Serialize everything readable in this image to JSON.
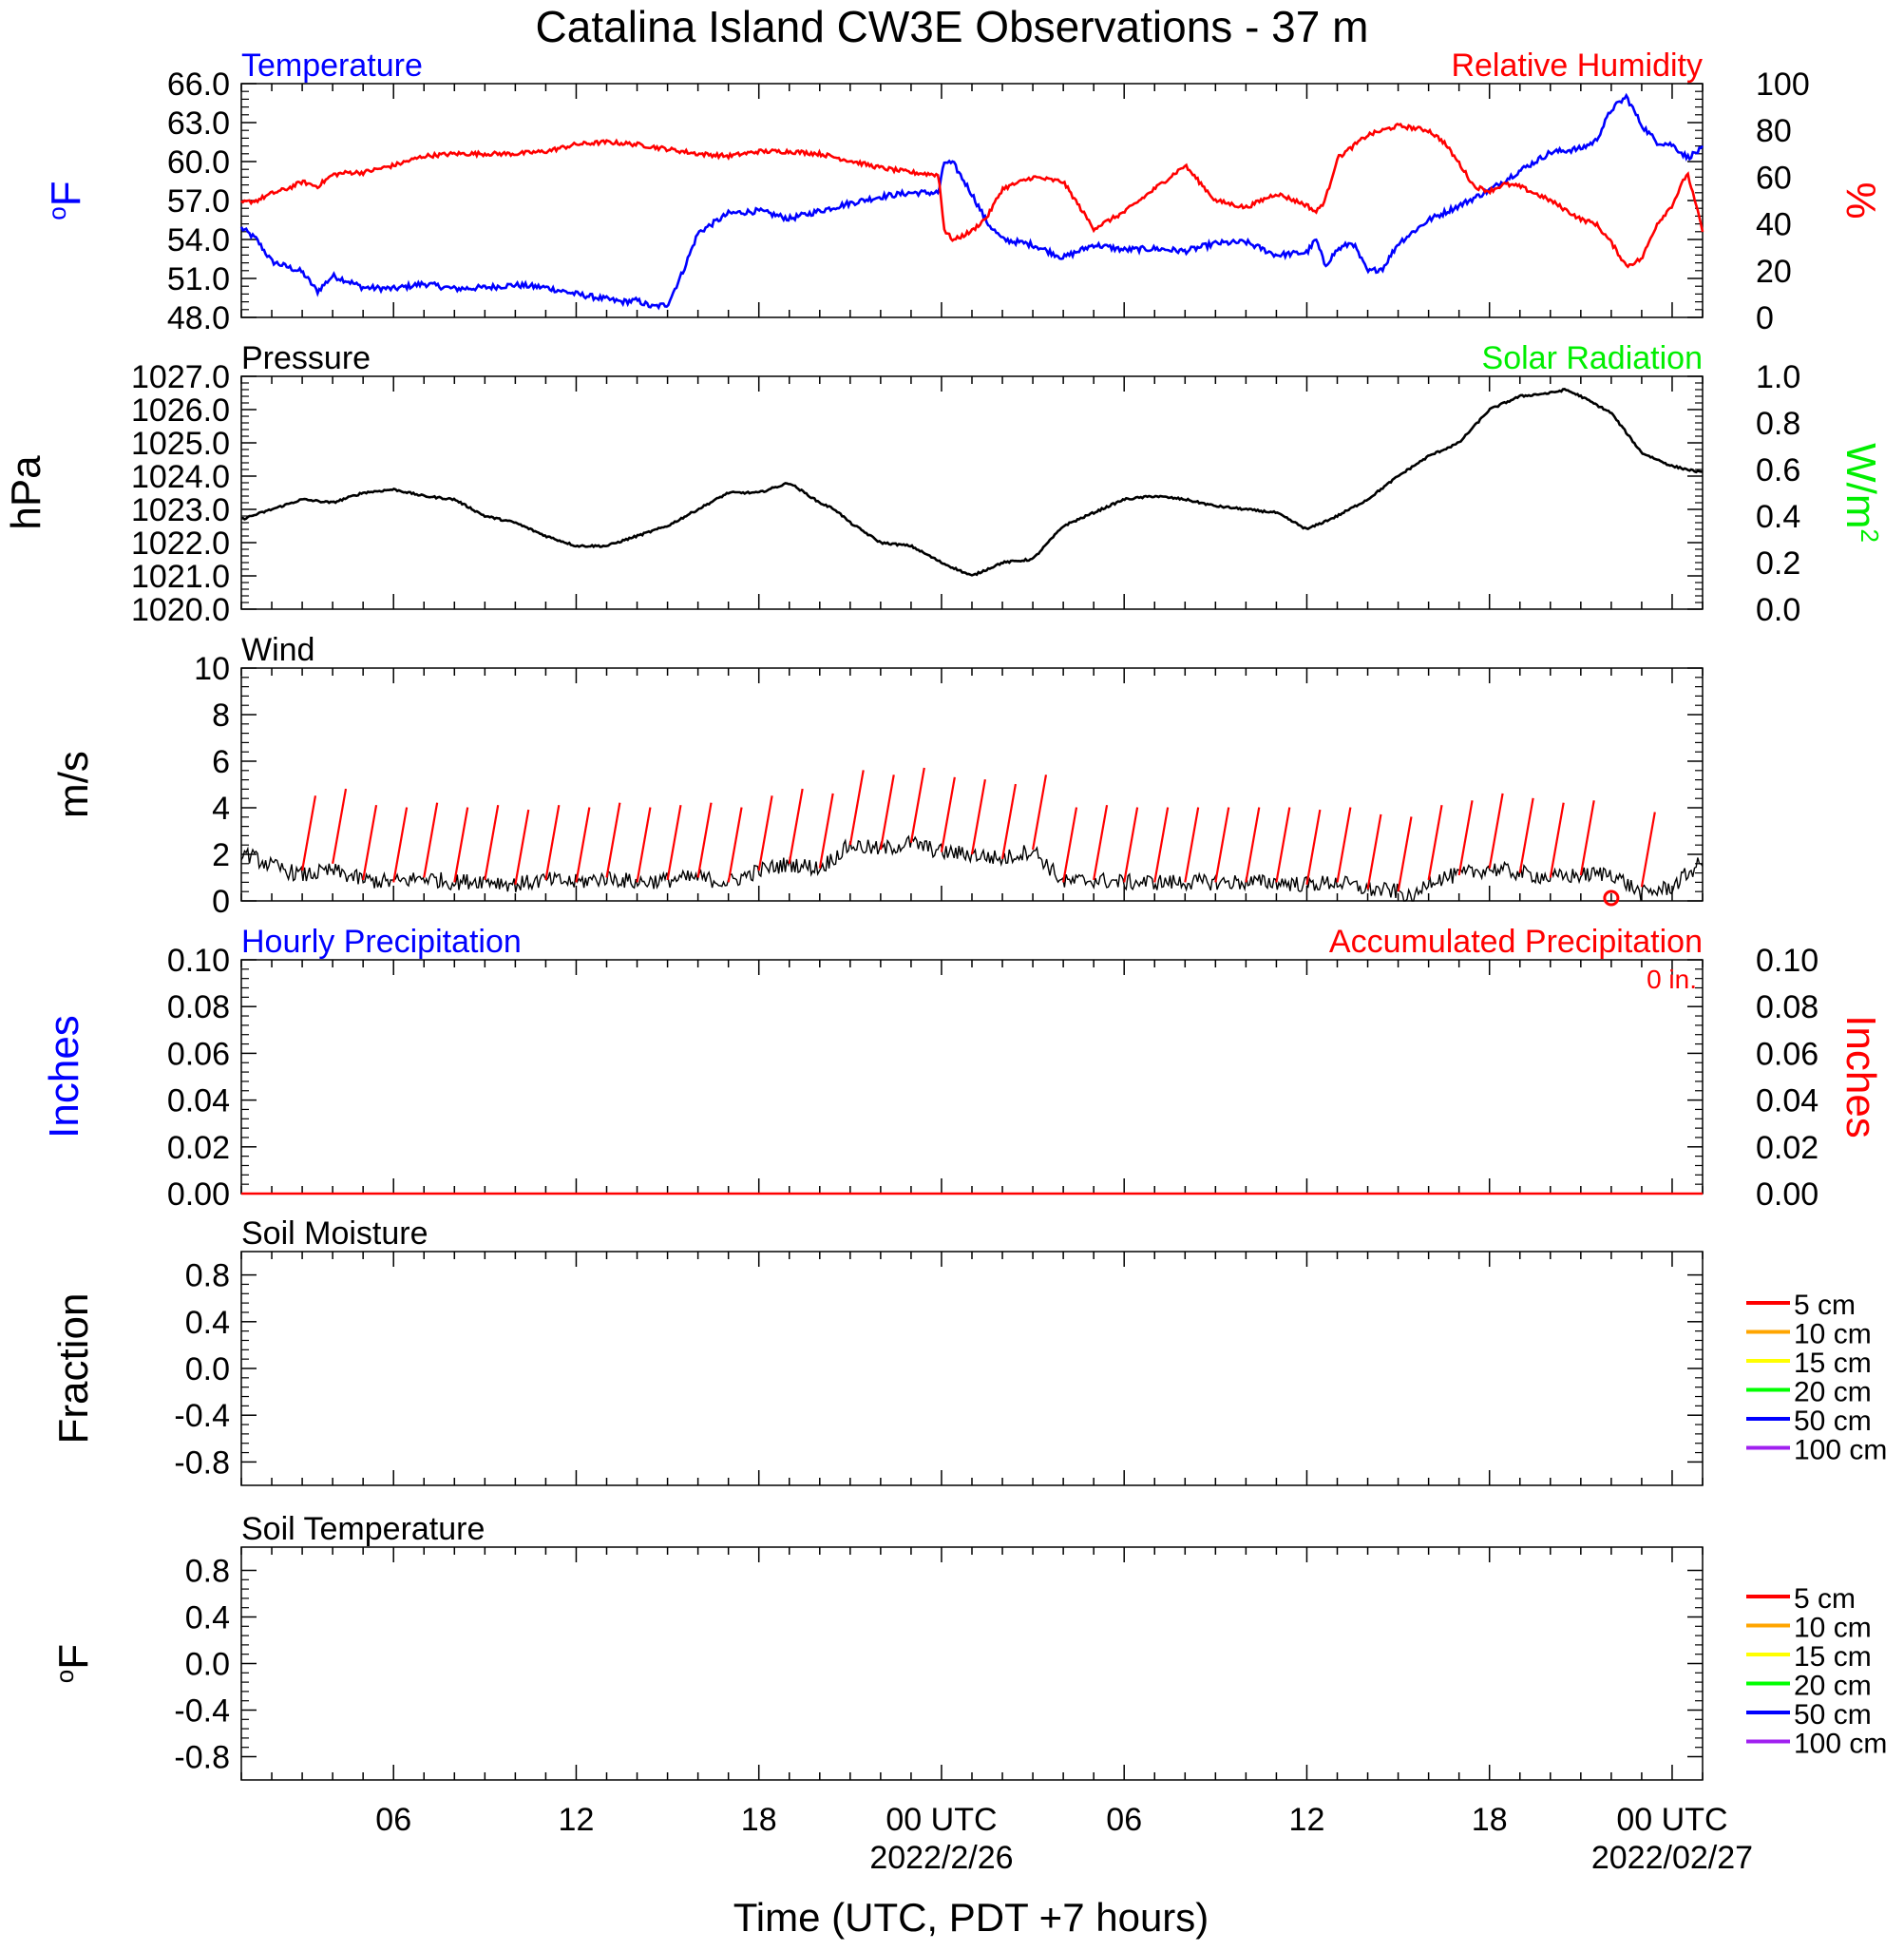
{
  "title": "Catalina Island CW3E Observations - 37 m",
  "x_axis": {
    "label": "Time (UTC, PDT +7 hours)",
    "tick_labels": [
      {
        "hour": 6,
        "lines": [
          "06"
        ]
      },
      {
        "hour": 12,
        "lines": [
          "12"
        ]
      },
      {
        "hour": 18,
        "lines": [
          "18"
        ]
      },
      {
        "hour": 24,
        "lines": [
          "00 UTC",
          "2022/2/26"
        ]
      },
      {
        "hour": 30,
        "lines": [
          "06"
        ]
      },
      {
        "hour": 36,
        "lines": [
          "12"
        ]
      },
      {
        "hour": 42,
        "lines": [
          "18"
        ]
      },
      {
        "hour": 48,
        "lines": [
          "00 UTC",
          "2022/02/27"
        ]
      }
    ],
    "range_hours": [
      1,
      49
    ]
  },
  "colors": {
    "temperature": "#0000ff",
    "humidity": "#ff0000",
    "solar": "#00ee00",
    "black": "#000000",
    "barb": "#ff0000",
    "accum_precip": "#ff0000",
    "hourly_precip": "#0000ff",
    "depth_5cm": "#ff0000",
    "depth_10cm": "#ffa500",
    "depth_15cm": "#ffff00",
    "depth_20cm": "#00ff00",
    "depth_50cm": "#0000ff",
    "depth_100cm": "#a020f0"
  },
  "chart_data": [
    {
      "type": "line",
      "panel": "temperature_humidity",
      "left_title": "Temperature",
      "right_title": "Relative Humidity",
      "left_unit": "oF",
      "right_unit": "%",
      "left_ylim": [
        48.0,
        66.0
      ],
      "left_ticks": [
        "66.0",
        "63.0",
        "60.0",
        "57.0",
        "54.0",
        "51.0",
        "48.0"
      ],
      "right_ylim": [
        0,
        100
      ],
      "right_ticks": [
        "100",
        "80",
        "60",
        "40",
        "20",
        "0"
      ],
      "series": [
        {
          "name": "Temperature",
          "axis": "left",
          "x": [
            1.0,
            1.5,
            2.0,
            2.5,
            3.0,
            3.5,
            4.0,
            4.5,
            5.0,
            6.0,
            7.0,
            8.0,
            9.0,
            10.0,
            11.0,
            12.0,
            13.0,
            13.5,
            14.0,
            14.5,
            15.0,
            15.5,
            16.0,
            17.0,
            18.0,
            19.0,
            20.0,
            21.0,
            22.0,
            23.0,
            23.9,
            24.1,
            24.4,
            25.0,
            25.5,
            26.0,
            27.0,
            28.0,
            29.0,
            30.0,
            31.0,
            32.0,
            33.0,
            34.0,
            35.0,
            36.0,
            36.3,
            36.6,
            37.0,
            37.5,
            38.0,
            38.5,
            39.0,
            40.0,
            41.0,
            42.0,
            43.0,
            44.0,
            45.0,
            45.5,
            46.0,
            46.5,
            47.0,
            47.5,
            48.0,
            48.5,
            49.0
          ],
          "y": [
            54.9,
            54.0,
            52.3,
            51.9,
            51.5,
            50.0,
            51.2,
            50.8,
            50.3,
            50.2,
            50.6,
            50.2,
            50.3,
            50.5,
            50.3,
            49.8,
            49.4,
            49.2,
            49.3,
            48.8,
            49.0,
            51.5,
            54.5,
            56.0,
            56.2,
            55.6,
            56.2,
            56.8,
            57.3,
            57.6,
            57.6,
            60.0,
            59.8,
            57.5,
            55.3,
            54.0,
            53.6,
            52.6,
            53.6,
            53.2,
            53.3,
            53.1,
            53.7,
            53.8,
            52.8,
            53.0,
            54.0,
            52.0,
            53.2,
            53.8,
            51.5,
            51.8,
            53.7,
            55.5,
            56.6,
            57.8,
            59.3,
            60.7,
            61.0,
            61.6,
            64.0,
            65.0,
            62.8,
            61.5,
            61.3,
            60.3,
            61.0
          ]
        },
        {
          "name": "Relative Humidity",
          "axis": "right",
          "x": [
            1.0,
            1.5,
            2.0,
            2.5,
            3.0,
            3.5,
            4.0,
            4.5,
            5.0,
            6.0,
            7.0,
            8.0,
            9.0,
            10.0,
            11.0,
            12.0,
            13.0,
            14.0,
            15.0,
            16.0,
            17.0,
            18.0,
            19.0,
            20.0,
            21.0,
            22.0,
            23.0,
            23.9,
            24.1,
            24.4,
            25.0,
            25.5,
            26.0,
            27.0,
            28.0,
            29.0,
            30.0,
            31.0,
            32.0,
            33.0,
            34.0,
            35.0,
            36.0,
            36.3,
            36.6,
            37.0,
            38.0,
            39.0,
            40.0,
            40.5,
            41.0,
            41.5,
            42.0,
            42.5,
            43.0,
            44.0,
            45.0,
            45.5,
            46.0,
            46.5,
            47.0,
            47.5,
            48.0,
            48.5,
            49.0
          ],
          "y": [
            49,
            50,
            53,
            55,
            58,
            56,
            61,
            62,
            62,
            65,
            69,
            70,
            70,
            70,
            71,
            74,
            75,
            74,
            72,
            70,
            69,
            71,
            71,
            70,
            67,
            64,
            62,
            61,
            37,
            33,
            37,
            43,
            55,
            60,
            58,
            38,
            45,
            55,
            65,
            50,
            47,
            53,
            48,
            45,
            50,
            68,
            78,
            82,
            80,
            75,
            66,
            56,
            54,
            57,
            56,
            50,
            42,
            40,
            32,
            22,
            25,
            40,
            48,
            62,
            37
          ]
        }
      ]
    },
    {
      "type": "line",
      "panel": "pressure_solar",
      "left_title": "Pressure",
      "right_title": "Solar Radiation",
      "left_unit": "hPa",
      "right_unit": "W/m2",
      "left_ylim": [
        1020.0,
        1027.0
      ],
      "left_ticks": [
        "1027.0",
        "1026.0",
        "1025.0",
        "1024.0",
        "1023.0",
        "1022.0",
        "1021.0",
        "1020.0"
      ],
      "right_ylim": [
        0.0,
        1.0
      ],
      "right_ticks": [
        "1.0",
        "0.8",
        "0.6",
        "0.4",
        "0.2",
        "0.0"
      ],
      "series": [
        {
          "name": "Pressure",
          "axis": "left",
          "x": [
            1.0,
            2.0,
            3.0,
            4.0,
            5.0,
            6.0,
            7.0,
            8.0,
            9.0,
            10.0,
            11.0,
            12.0,
            13.0,
            14.0,
            15.0,
            16.0,
            17.0,
            18.0,
            19.0,
            20.0,
            20.5,
            21.0,
            22.0,
            23.0,
            24.0,
            25.0,
            26.0,
            27.0,
            28.0,
            29.0,
            30.0,
            31.0,
            32.0,
            33.0,
            34.0,
            35.0,
            36.0,
            37.0,
            38.0,
            39.0,
            40.0,
            41.0,
            42.0,
            43.0,
            44.0,
            44.5,
            45.0,
            46.0,
            47.0,
            48.0,
            49.0
          ],
          "y": [
            1022.7,
            1023.0,
            1023.3,
            1023.2,
            1023.5,
            1023.6,
            1023.4,
            1023.3,
            1022.8,
            1022.6,
            1022.2,
            1021.9,
            1021.9,
            1022.2,
            1022.5,
            1023.0,
            1023.5,
            1023.5,
            1023.8,
            1023.2,
            1023.0,
            1022.6,
            1022.0,
            1021.9,
            1021.4,
            1021.0,
            1021.4,
            1021.5,
            1022.5,
            1022.9,
            1023.3,
            1023.4,
            1023.3,
            1023.1,
            1023.0,
            1022.9,
            1022.4,
            1022.8,
            1023.3,
            1024.0,
            1024.6,
            1025.0,
            1026.0,
            1026.4,
            1026.5,
            1026.6,
            1026.4,
            1025.9,
            1024.7,
            1024.3,
            1024.1
          ]
        }
      ]
    },
    {
      "type": "line",
      "panel": "wind",
      "left_title": "Wind",
      "left_unit": "m/s",
      "left_ylim": [
        0,
        10
      ],
      "left_ticks": [
        "10",
        "8",
        "6",
        "4",
        "2",
        "0"
      ],
      "series": [
        {
          "name": "Wind",
          "axis": "left",
          "x": [
            1.0,
            2.0,
            3.0,
            4.0,
            5.0,
            6.0,
            7.0,
            8.0,
            9.0,
            10.0,
            11.0,
            12.0,
            13.0,
            14.0,
            15.0,
            16.0,
            17.0,
            18.0,
            19.0,
            20.0,
            21.0,
            22.0,
            23.0,
            24.0,
            25.0,
            26.0,
            27.0,
            28.0,
            29.0,
            30.0,
            31.0,
            32.0,
            33.0,
            34.0,
            35.0,
            36.0,
            37.0,
            38.0,
            39.0,
            39.5,
            40.0,
            41.0,
            42.0,
            43.0,
            44.0,
            45.0,
            46.0,
            47.0,
            48.0,
            49.0
          ],
          "y": [
            2.1,
            1.5,
            1.1,
            1.3,
            0.9,
            0.8,
            1.0,
            0.8,
            0.9,
            0.7,
            0.9,
            0.8,
            1.0,
            0.8,
            0.9,
            1.0,
            0.8,
            1.3,
            1.6,
            1.4,
            2.4,
            2.2,
            2.5,
            2.1,
            2.0,
            1.8,
            2.2,
            0.8,
            0.9,
            0.8,
            0.8,
            0.8,
            0.8,
            0.8,
            0.8,
            0.7,
            0.8,
            0.5,
            0.4,
            0.0,
            0.9,
            1.1,
            1.4,
            1.2,
            1.0,
            1.1,
            1.2,
            0.3,
            0.6,
            1.7
          ]
        }
      ],
      "barbs": {
        "x": [
          3,
          4,
          5,
          6,
          7,
          8,
          9,
          10,
          11,
          12,
          13,
          14,
          15,
          16,
          17,
          18,
          19,
          20,
          21,
          22,
          23,
          24,
          25,
          26,
          27,
          28,
          29,
          30,
          31,
          32,
          33,
          34,
          35,
          36,
          37,
          38,
          39,
          40,
          41,
          42,
          43,
          44,
          45,
          47
        ],
        "speeds": [
          1.3,
          1.6,
          0.9,
          0.8,
          1.0,
          0.8,
          0.9,
          0.7,
          0.9,
          0.8,
          1.0,
          0.8,
          0.9,
          1.0,
          0.8,
          1.3,
          1.6,
          1.4,
          2.4,
          2.2,
          2.5,
          2.1,
          2.0,
          1.8,
          2.2,
          0.8,
          0.9,
          0.8,
          0.8,
          0.8,
          0.8,
          0.8,
          0.8,
          0.7,
          0.8,
          0.5,
          0.4,
          0.9,
          1.1,
          1.4,
          1.2,
          1.0,
          1.1,
          0.6
        ]
      },
      "calm_marker_x": 46.0
    },
    {
      "type": "line",
      "panel": "precipitation",
      "left_title": "Hourly Precipitation",
      "right_title": "Accumulated Precipitation",
      "accum_total": "0 in.",
      "left_unit": "Inches",
      "right_unit": "Inches",
      "left_ylim": [
        0.0,
        0.1
      ],
      "left_ticks": [
        "0.10",
        "0.08",
        "0.06",
        "0.04",
        "0.02",
        "0.00"
      ],
      "right_ylim": [
        0.0,
        0.1
      ],
      "right_ticks": [
        "0.10",
        "0.08",
        "0.06",
        "0.04",
        "0.02",
        "0.00"
      ],
      "series": [
        {
          "name": "Accumulated Precipitation",
          "axis": "right",
          "x": [
            1,
            49
          ],
          "y": [
            0.0,
            0.0
          ]
        }
      ]
    },
    {
      "type": "line",
      "panel": "soil_moisture",
      "left_title": "Soil Moisture",
      "left_unit": "Fraction",
      "left_ylim": [
        -1.0,
        1.0
      ],
      "left_ticks": [
        "0.8",
        "0.4",
        "0.0",
        "-0.4",
        "-0.8"
      ],
      "legend": [
        "5 cm",
        "10 cm",
        "15 cm",
        "20 cm",
        "50 cm",
        "100 cm"
      ],
      "series": []
    },
    {
      "type": "line",
      "panel": "soil_temperature",
      "left_title": "Soil Temperature",
      "left_unit": "oF",
      "left_ylim": [
        -1.0,
        1.0
      ],
      "left_ticks": [
        "0.8",
        "0.4",
        "0.0",
        "-0.4",
        "-0.8"
      ],
      "legend": [
        "5 cm",
        "10 cm",
        "15 cm",
        "20 cm",
        "50 cm",
        "100 cm"
      ],
      "series": []
    }
  ]
}
